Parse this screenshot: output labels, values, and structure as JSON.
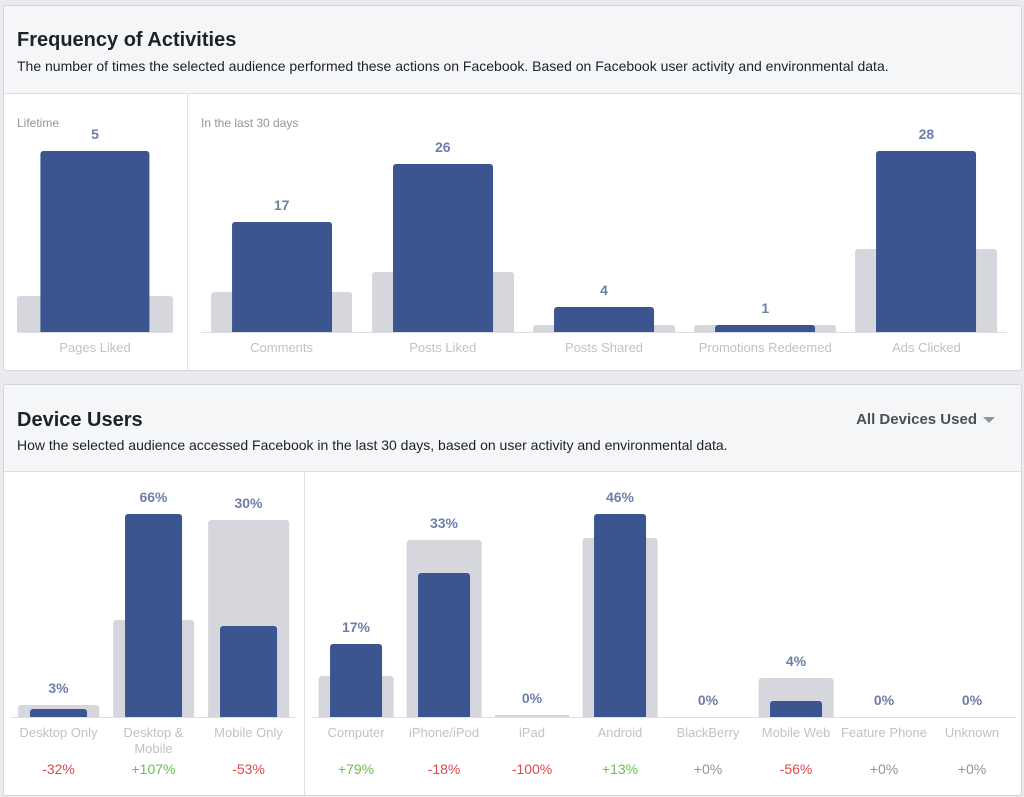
{
  "frequency": {
    "title": "Frequency of Activities",
    "subtitle": "The number of times the selected audience performed these actions on Facebook. Based on Facebook user activity and environmental data.",
    "panels": [
      {
        "label": "Lifetime",
        "items": [
          {
            "name": "Pages Liked",
            "value": "5",
            "audience_fill": 1.0,
            "benchmark_fill": 0.2
          }
        ]
      },
      {
        "label": "In the last 30 days",
        "items": [
          {
            "name": "Comments",
            "value": "17",
            "audience_fill": 0.61,
            "benchmark_fill": 0.22
          },
          {
            "name": "Posts Liked",
            "value": "26",
            "audience_fill": 0.93,
            "benchmark_fill": 0.33
          },
          {
            "name": "Posts Shared",
            "value": "4",
            "audience_fill": 0.14,
            "benchmark_fill": 0.04
          },
          {
            "name": "Promotions Redeemed",
            "value": "1",
            "audience_fill": 0.04,
            "benchmark_fill": 0.04
          },
          {
            "name": "Ads Clicked",
            "value": "28",
            "audience_fill": 1.0,
            "benchmark_fill": 0.46
          }
        ]
      }
    ]
  },
  "devices": {
    "title": "Device Users",
    "subtitle": "How the selected audience accessed Facebook in the last 30 days, based on user activity and environmental data.",
    "dropdown": "All Devices Used",
    "panels": [
      {
        "items": [
          {
            "name": "Desktop Only",
            "value": "3%",
            "change": "-32%",
            "audience_fill": 0.04,
            "benchmark_fill": 0.06
          },
          {
            "name": "Desktop & Mobile",
            "value": "66%",
            "change": "+107%",
            "audience_fill": 1.0,
            "benchmark_fill": 0.48
          },
          {
            "name": "Mobile Only",
            "value": "30%",
            "change": "-53%",
            "audience_fill": 0.45,
            "benchmark_fill": 0.97
          }
        ]
      },
      {
        "items": [
          {
            "name": "Computer",
            "value": "17%",
            "change": "+79%",
            "audience_fill": 0.36,
            "benchmark_fill": 0.2
          },
          {
            "name": "iPhone/iPod",
            "value": "33%",
            "change": "-18%",
            "audience_fill": 0.71,
            "benchmark_fill": 0.87
          },
          {
            "name": "iPad",
            "value": "0%",
            "change": "-100%",
            "audience_fill": 0,
            "benchmark_fill": 0.01
          },
          {
            "name": "Android",
            "value": "46%",
            "change": "+13%",
            "audience_fill": 1.0,
            "benchmark_fill": 0.88
          },
          {
            "name": "BlackBerry",
            "value": "0%",
            "change": "+0%",
            "audience_fill": 0,
            "benchmark_fill": 0
          },
          {
            "name": "Mobile Web",
            "value": "4%",
            "change": "-56%",
            "audience_fill": 0.08,
            "benchmark_fill": 0.19
          },
          {
            "name": "Feature Phone",
            "value": "0%",
            "change": "+0%",
            "audience_fill": 0,
            "benchmark_fill": 0
          },
          {
            "name": "Unknown",
            "value": "0%",
            "change": "+0%",
            "audience_fill": 0,
            "benchmark_fill": 0
          }
        ]
      }
    ]
  },
  "colors": {
    "audience": "#3b5590",
    "benchmark": "#d5d7dc",
    "positive": "#6bbf4e",
    "negative": "#e0474c",
    "neutral": "#90949c"
  },
  "chart_data": [
    {
      "type": "bar",
      "title": "Frequency of Activities",
      "categories": [
        "Pages Liked",
        "Comments",
        "Posts Liked",
        "Posts Shared",
        "Promotions Redeemed",
        "Ads Clicked"
      ],
      "values": [
        5,
        17,
        26,
        4,
        1,
        28
      ]
    },
    {
      "type": "bar",
      "title": "Device Users",
      "categories": [
        "Desktop Only",
        "Desktop & Mobile",
        "Mobile Only",
        "Computer",
        "iPhone/iPod",
        "iPad",
        "Android",
        "BlackBerry",
        "Mobile Web",
        "Feature Phone",
        "Unknown"
      ],
      "values": [
        3,
        66,
        30,
        17,
        33,
        0,
        46,
        0,
        4,
        0,
        0
      ],
      "changes": [
        "-32%",
        "+107%",
        "-53%",
        "+79%",
        "-18%",
        "-100%",
        "+13%",
        "+0%",
        "-56%",
        "+0%",
        "+0%"
      ]
    }
  ]
}
